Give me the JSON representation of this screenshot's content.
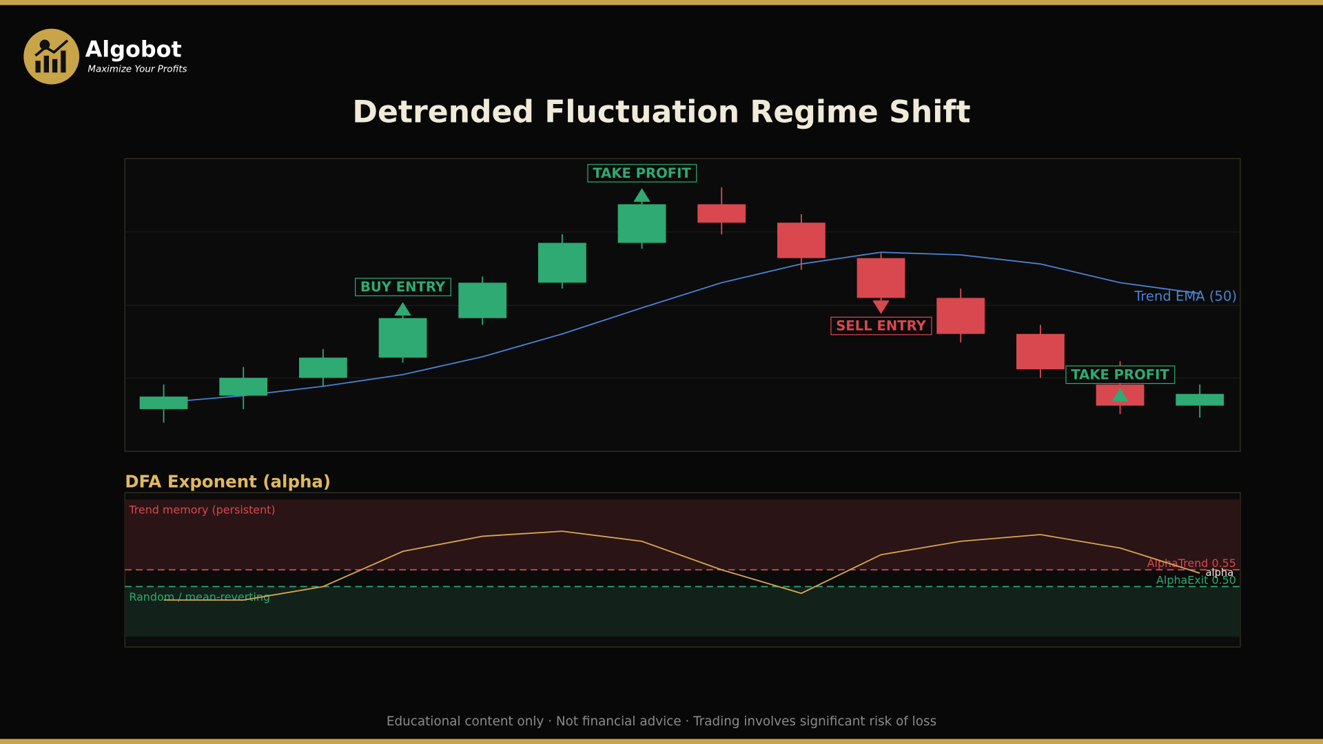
{
  "brand": {
    "name": "Algobot",
    "tagline": "Maximize Your Profits"
  },
  "chart_data": [
    {
      "type": "candlestick",
      "title": "Detrended Fluctuation Regime Shift",
      "open": [
        14.4,
        19.0,
        25.1,
        32.0,
        45.5,
        57.6,
        71.2,
        84.4,
        78.1,
        66.0,
        52.4,
        40.1,
        22.8,
        15.6
      ],
      "close": [
        18.7,
        25.1,
        32.0,
        45.5,
        57.6,
        71.2,
        84.4,
        78.1,
        66.0,
        52.4,
        40.1,
        28.0,
        15.6,
        19.6
      ],
      "high": [
        22.8,
        28.8,
        34.9,
        47.6,
        59.7,
        74.1,
        86.5,
        90.2,
        81.0,
        67.7,
        55.6,
        43.2,
        30.8,
        22.8
      ],
      "low": [
        9.8,
        14.4,
        22.2,
        30.3,
        43.2,
        55.6,
        69.2,
        74.1,
        62.0,
        50.4,
        37.2,
        25.1,
        12.7,
        11.5
      ],
      "up_color": "#2eaa72",
      "down_color": "#d9484f",
      "ylim": [
        0,
        100
      ],
      "overlays": [
        {
          "name": "Trend EMA (50)",
          "color": "#4a82d4",
          "values": [
            16.7,
            19.0,
            22.2,
            26.2,
            32.3,
            40.1,
            49.0,
            57.6,
            64.0,
            68.0,
            67.1,
            64.0,
            57.6,
            53.9
          ]
        }
      ],
      "annotations": [
        {
          "text": "BUY ENTRY",
          "index": 3,
          "position": "above",
          "color": "#2eaa72"
        },
        {
          "text": "TAKE PROFIT",
          "index": 6,
          "position": "above",
          "color": "#2eaa72"
        },
        {
          "text": "SELL ENTRY",
          "index": 9,
          "position": "below",
          "color": "#d9484f"
        },
        {
          "text": "TAKE PROFIT",
          "index": 12,
          "position": "above",
          "color": "#2eaa72"
        }
      ]
    },
    {
      "type": "line",
      "title": "DFA Exponent (alpha)",
      "series": [
        {
          "name": "alpha",
          "color": "#d9a84e",
          "values": [
            0.46,
            0.46,
            0.5,
            0.605,
            0.65,
            0.665,
            0.635,
            0.55,
            0.48,
            0.595,
            0.635,
            0.655,
            0.615,
            0.54
          ]
        }
      ],
      "ylim": [
        0.32,
        0.78
      ],
      "thresholds": [
        {
          "value": 0.55,
          "label": "AlphaTrend 0.55",
          "color": "#d9484f"
        },
        {
          "value": 0.5,
          "label": "AlphaExit 0.50",
          "color": "#2eaa72"
        }
      ],
      "zones": [
        {
          "label": "Trend memory (persistent)",
          "range": [
            0.55,
            0.76
          ],
          "color": "#2a1416"
        },
        {
          "label": "Random / mean-reverting",
          "range": [
            0.35,
            0.5
          ],
          "color": "#12211a"
        }
      ]
    }
  ],
  "footer": "Educational content only  ·  Not financial advice  ·  Trading involves significant risk of loss"
}
